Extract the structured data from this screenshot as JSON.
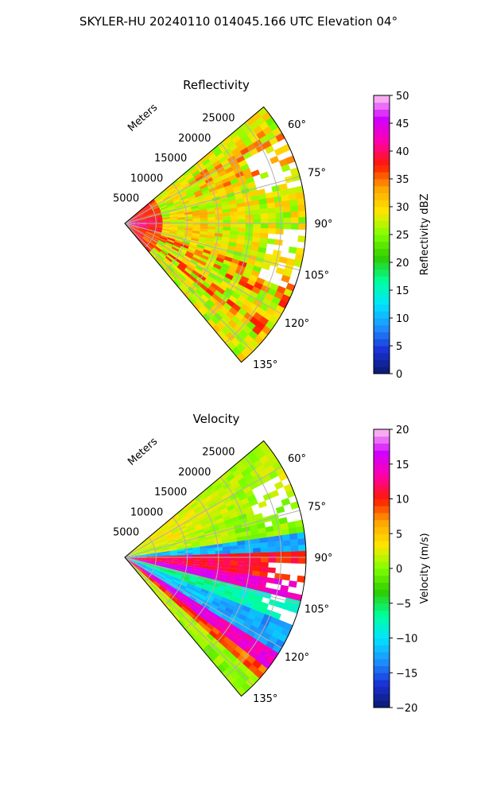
{
  "figure": {
    "suptitle": "SKYLER-HU  20240110  014045.166 UTC Elevation 04°"
  },
  "chart_data": [
    {
      "type": "heatmap",
      "title": "Reflectivity",
      "radial_axis_label": "Meters",
      "range_ticks": [
        "5000",
        "10000",
        "15000",
        "20000",
        "25000"
      ],
      "range_tick_values": [
        5000,
        10000,
        15000,
        20000,
        25000
      ],
      "range_max": 29000,
      "azimuth_range_deg": [
        50,
        140
      ],
      "azimuth_ticks": [
        "60°",
        "75°",
        "90°",
        "105°",
        "120°",
        "135°"
      ],
      "azimuth_tick_values": [
        60,
        75,
        90,
        105,
        120,
        135
      ],
      "grid": true,
      "colorbar": {
        "label": "Reflectivity dBZ",
        "ticks": [
          "0",
          "5",
          "10",
          "15",
          "20",
          "25",
          "30",
          "35",
          "40",
          "45",
          "50"
        ],
        "min": 0,
        "max": 50,
        "colormap": [
          "#0a1a6e",
          "#1a2fd6",
          "#1e90ff",
          "#00e5ff",
          "#00ff9c",
          "#2ecc00",
          "#7fff00",
          "#ffe600",
          "#ffa500",
          "#ff1a00",
          "#ff00aa",
          "#d000ff",
          "#ffc8f0"
        ]
      },
      "field_summary": {
        "near_range_m": [
          0,
          5000
        ],
        "near_range_dbz": 40,
        "typical_dbz": 28,
        "bands_dbz": 34
      }
    },
    {
      "type": "heatmap",
      "title": "Velocity",
      "radial_axis_label": "Meters",
      "range_ticks": [
        "5000",
        "10000",
        "15000",
        "20000",
        "25000"
      ],
      "range_tick_values": [
        5000,
        10000,
        15000,
        20000,
        25000
      ],
      "range_max": 29000,
      "azimuth_range_deg": [
        50,
        140
      ],
      "azimuth_ticks": [
        "60°",
        "75°",
        "90°",
        "105°",
        "120°",
        "135°"
      ],
      "azimuth_tick_values": [
        60,
        75,
        90,
        105,
        120,
        135
      ],
      "grid": true,
      "colorbar": {
        "label": "Velocity (m/s)",
        "ticks": [
          "−20",
          "−15",
          "−10",
          "−5",
          "0",
          "5",
          "10",
          "15",
          "20"
        ],
        "min": -20,
        "max": 20,
        "colormap": [
          "#0a1a6e",
          "#1a2fd6",
          "#1e90ff",
          "#00e5ff",
          "#00ff9c",
          "#2ecc00",
          "#7fff00",
          "#ffe600",
          "#ffa500",
          "#ff1a00",
          "#ff00aa",
          "#d000ff",
          "#ffc8f0"
        ]
      },
      "field_summary": {
        "bands_by_azimuth_deg": [
          {
            "from": 50,
            "to": 70,
            "ms": 2
          },
          {
            "from": 70,
            "to": 82,
            "ms": 1
          },
          {
            "from": 82,
            "to": 88,
            "ms": -12
          },
          {
            "from": 88,
            "to": 98,
            "ms": 11
          },
          {
            "from": 98,
            "to": 104,
            "ms": 15
          },
          {
            "from": 104,
            "to": 112,
            "ms": -7
          },
          {
            "from": 112,
            "to": 122,
            "ms": -12
          },
          {
            "from": 122,
            "to": 128,
            "ms": 15
          },
          {
            "from": 128,
            "to": 133,
            "ms": 9
          },
          {
            "from": 133,
            "to": 140,
            "ms": 1
          }
        ]
      }
    }
  ]
}
